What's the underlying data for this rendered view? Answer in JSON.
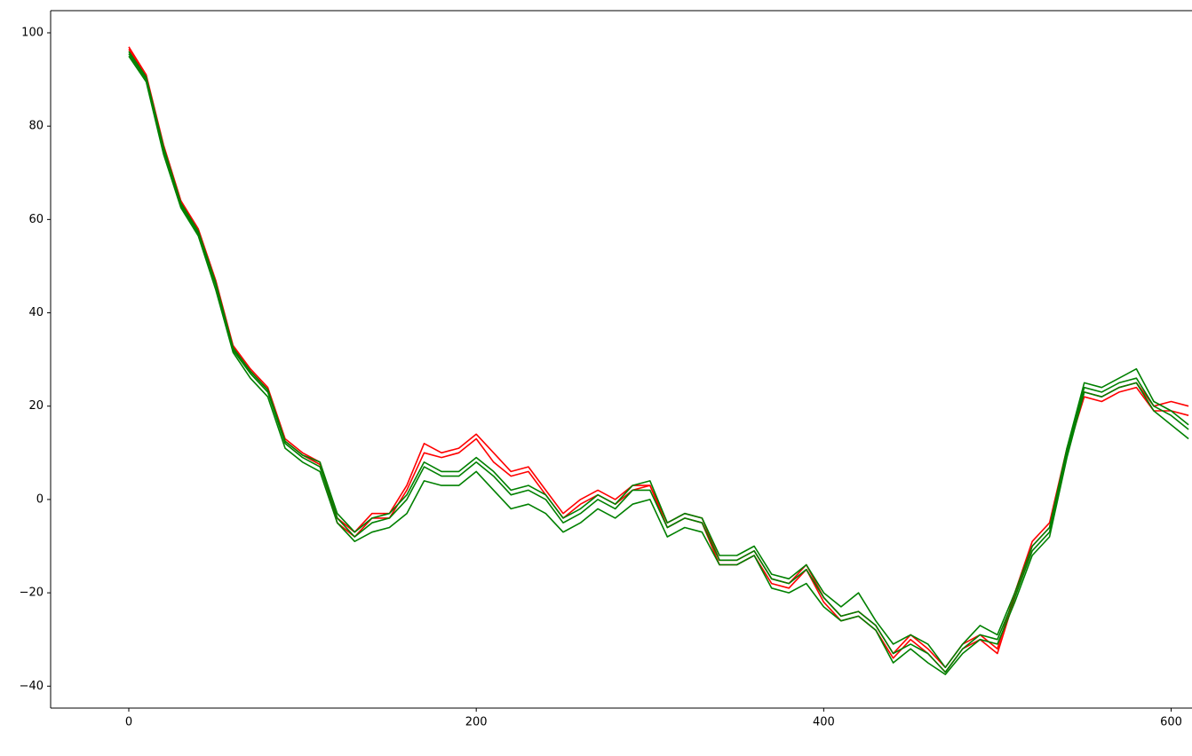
{
  "chart_data": {
    "type": "line",
    "x": [
      0,
      10,
      20,
      30,
      40,
      50,
      60,
      70,
      80,
      90,
      100,
      110,
      120,
      130,
      140,
      150,
      160,
      170,
      180,
      190,
      200,
      210,
      220,
      230,
      240,
      250,
      260,
      270,
      280,
      290,
      300,
      310,
      320,
      330,
      340,
      350,
      360,
      370,
      380,
      390,
      400,
      410,
      420,
      430,
      440,
      450,
      460,
      470,
      480,
      490,
      500,
      510,
      520,
      530,
      540,
      550,
      560,
      570,
      580,
      590,
      600,
      610
    ],
    "series": [
      {
        "color": "#ff0000",
        "values": [
          97,
          91,
          76,
          64,
          58,
          47,
          33,
          28,
          24,
          13,
          10,
          8,
          -4,
          -7,
          -3,
          -3,
          3,
          12,
          10,
          11,
          14,
          10,
          6,
          7,
          2,
          -3,
          0,
          2,
          0,
          3,
          3,
          -5,
          -3,
          -4,
          -13,
          -13,
          -11,
          -17,
          -18,
          -14,
          -21,
          -25,
          -24,
          -27,
          -33,
          -29,
          -32,
          -36,
          -31,
          -29,
          -32,
          -20,
          -9,
          -5,
          11,
          23,
          22,
          24,
          25,
          20,
          21,
          20
        ]
      },
      {
        "color": "#ff0000",
        "values": [
          96.5,
          90.5,
          75.5,
          63.5,
          57.5,
          46.5,
          32.5,
          27.5,
          23.5,
          12.5,
          9.5,
          7.5,
          -5,
          -8,
          -4,
          -4,
          2,
          10,
          9,
          10,
          13,
          8,
          5,
          6,
          1,
          -4,
          -1,
          1,
          -1,
          2,
          3,
          -6,
          -4,
          -5,
          -14,
          -14,
          -12,
          -18,
          -19,
          -15,
          -22,
          -26,
          -25,
          -28,
          -34,
          -30,
          -33,
          -37,
          -32,
          -30,
          -33,
          -21,
          -10,
          -6,
          10,
          22,
          21,
          23,
          24,
          19,
          19,
          18
        ]
      },
      {
        "color": "#008000",
        "values": [
          95.5,
          90,
          75,
          63,
          57,
          46,
          32,
          27,
          23,
          12,
          9,
          7,
          -4,
          -8,
          -5,
          -4,
          0,
          7,
          5,
          5,
          8,
          5,
          1,
          2,
          0,
          -5,
          -3,
          0,
          -2,
          2,
          2,
          -6,
          -4,
          -5,
          -13,
          -13,
          -11,
          -17,
          -18,
          -15,
          -21,
          -25,
          -24,
          -27,
          -33,
          -31,
          -33,
          -37,
          -32,
          -29,
          -30,
          -21,
          -11,
          -7,
          10,
          24,
          23,
          25,
          26,
          20,
          18,
          15
        ]
      },
      {
        "color": "#008000",
        "values": [
          95,
          89.5,
          74,
          62.5,
          56.5,
          45,
          31.5,
          26,
          22,
          11,
          8,
          6,
          -5,
          -9,
          -7,
          -6,
          -3,
          4,
          3,
          3,
          6,
          2,
          -2,
          -1,
          -3,
          -7,
          -5,
          -2,
          -4,
          -1,
          0,
          -8,
          -6,
          -7,
          -14,
          -14,
          -12,
          -19,
          -20,
          -18,
          -23,
          -26,
          -25,
          -28,
          -35,
          -32,
          -35,
          -37.5,
          -33,
          -30,
          -31,
          -22,
          -12,
          -8,
          9,
          23,
          22,
          24,
          25,
          19,
          16,
          13
        ]
      },
      {
        "color": "#008000",
        "values": [
          96,
          90.5,
          75.5,
          63.5,
          57.5,
          46.5,
          32.5,
          27.5,
          23.5,
          12.5,
          9.5,
          8,
          -3,
          -7,
          -4,
          -3,
          1,
          8,
          6,
          6,
          9,
          6,
          2,
          3,
          1,
          -4,
          -2,
          1,
          -1,
          3,
          4,
          -5,
          -3,
          -4,
          -12,
          -12,
          -10,
          -16,
          -17,
          -14,
          -20,
          -23,
          -20,
          -26,
          -31,
          -29,
          -31,
          -36,
          -31,
          -27,
          -29,
          -20,
          -10,
          -6,
          11,
          25,
          24,
          26,
          28,
          21,
          19,
          16
        ]
      }
    ],
    "xlim": [
      -45,
      612
    ],
    "ylim": [
      -44.7,
      104.75
    ],
    "xticks": [
      0,
      200,
      400,
      600
    ],
    "yticks": [
      {
        "value": -40,
        "label": "−40"
      },
      {
        "value": -20,
        "label": "−20"
      },
      0,
      20,
      40,
      60,
      80,
      100
    ]
  }
}
